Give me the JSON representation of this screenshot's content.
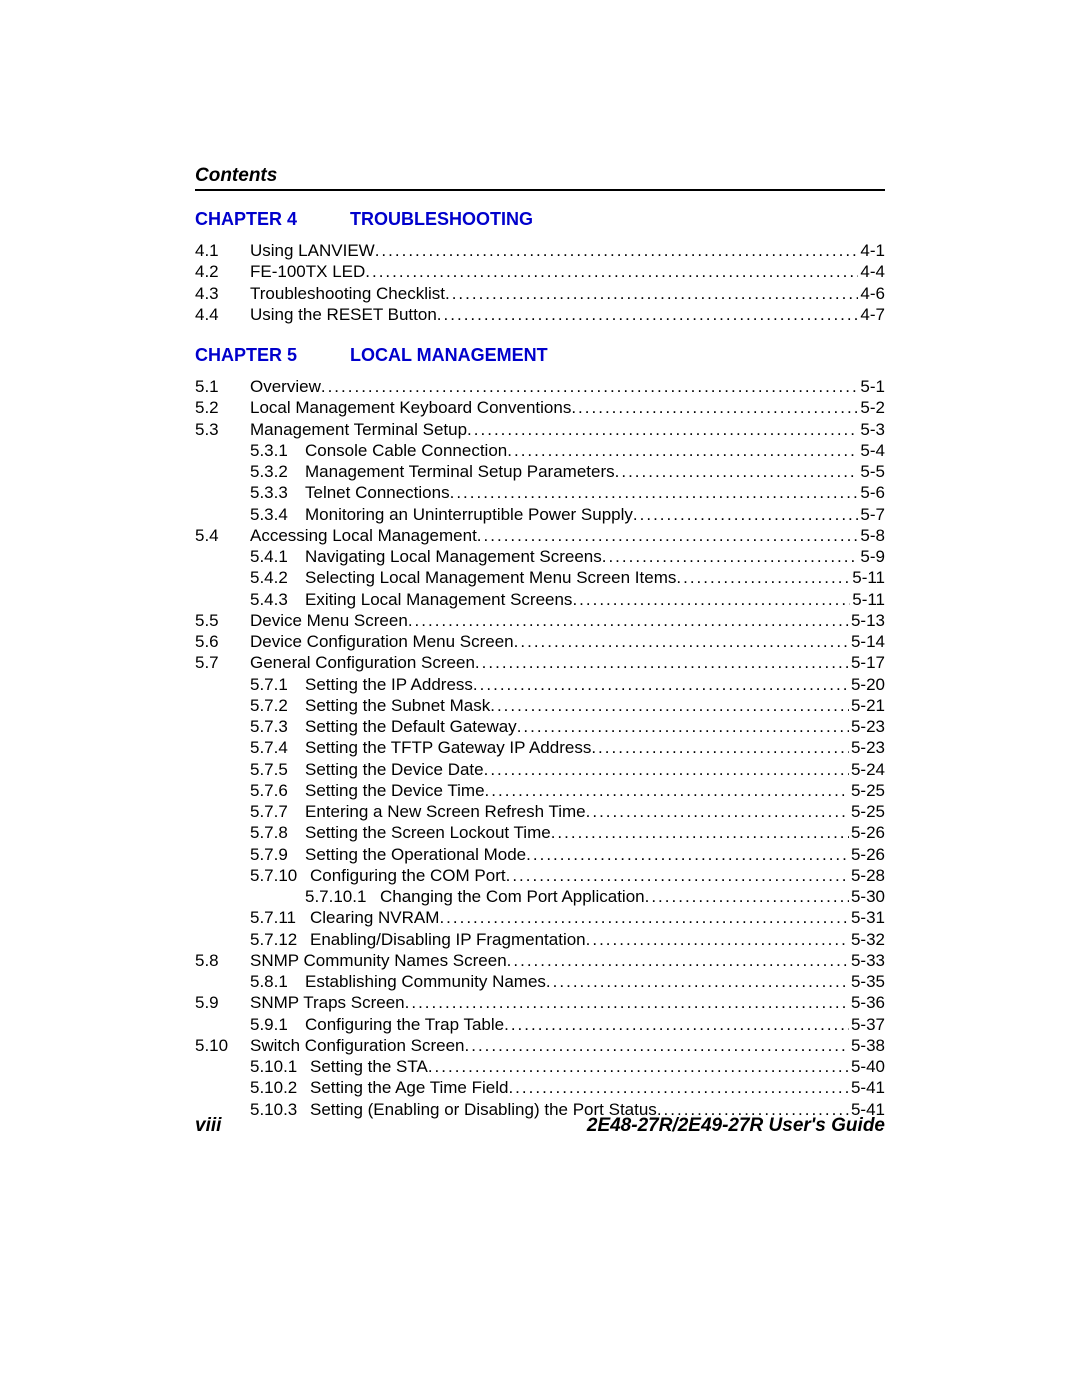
{
  "header": {
    "title": "Contents"
  },
  "chapter4": {
    "label": "CHAPTER 4",
    "title": "TROUBLESHOOTING",
    "entries": [
      {
        "num": "4.1",
        "text": "Using LANVIEW",
        "page": "4-1",
        "level": 1
      },
      {
        "num": "4.2",
        "text": "FE-100TX LED",
        "page": "4-4",
        "level": 1
      },
      {
        "num": "4.3",
        "text": "Troubleshooting Checklist",
        "page": "4-6",
        "level": 1
      },
      {
        "num": "4.4",
        "text": "Using the RESET Button",
        "page": "4-7",
        "level": 1
      }
    ]
  },
  "chapter5": {
    "label": "CHAPTER 5",
    "title": "LOCAL MANAGEMENT",
    "entries": [
      {
        "num": "5.1",
        "text": "Overview",
        "page": "5-1",
        "level": 1
      },
      {
        "num": "5.2",
        "text": "Local Management Keyboard Conventions",
        "page": "5-2",
        "level": 1
      },
      {
        "num": "5.3",
        "text": "Management Terminal Setup",
        "page": "5-3",
        "level": 1
      },
      {
        "num": "5.3.1",
        "text": "Console Cable Connection",
        "page": "5-4",
        "level": 2
      },
      {
        "num": "5.3.2",
        "text": "Management Terminal Setup Parameters",
        "page": "5-5",
        "level": 2
      },
      {
        "num": "5.3.3",
        "text": "Telnet Connections",
        "page": "5-6",
        "level": 2
      },
      {
        "num": "5.3.4",
        "text": "Monitoring an Uninterruptible Power Supply",
        "page": "5-7",
        "level": 2
      },
      {
        "num": "5.4",
        "text": "Accessing Local Management",
        "page": "5-8",
        "level": 1
      },
      {
        "num": "5.4.1",
        "text": "Navigating Local Management Screens",
        "page": "5-9",
        "level": 2
      },
      {
        "num": "5.4.2",
        "text": "Selecting Local Management Menu Screen Items",
        "page": "5-11",
        "level": 2
      },
      {
        "num": "5.4.3",
        "text": "Exiting Local Management Screens",
        "page": "5-11",
        "level": 2
      },
      {
        "num": "5.5",
        "text": "Device Menu Screen",
        "page": "5-13",
        "level": 1
      },
      {
        "num": "5.6",
        "text": "Device Configuration Menu Screen",
        "page": "5-14",
        "level": 1
      },
      {
        "num": "5.7",
        "text": "General Configuration Screen",
        "page": "5-17",
        "level": 1
      },
      {
        "num": "5.7.1",
        "text": "Setting the IP Address",
        "page": "5-20",
        "level": 2
      },
      {
        "num": "5.7.2",
        "text": "Setting the Subnet Mask",
        "page": "5-21",
        "level": 2
      },
      {
        "num": "5.7.3",
        "text": "Setting the Default Gateway",
        "page": "5-23",
        "level": 2
      },
      {
        "num": "5.7.4",
        "text": "Setting the TFTP Gateway IP Address",
        "page": "5-23",
        "level": 2
      },
      {
        "num": "5.7.5",
        "text": "Setting the Device Date",
        "page": "5-24",
        "level": 2
      },
      {
        "num": "5.7.6",
        "text": "Setting the Device Time",
        "page": "5-25",
        "level": 2
      },
      {
        "num": "5.7.7",
        "text": "Entering a New Screen Refresh Time",
        "page": "5-25",
        "level": 2
      },
      {
        "num": "5.7.8",
        "text": "Setting the Screen Lockout Time",
        "page": "5-26",
        "level": 2
      },
      {
        "num": "5.7.9",
        "text": "Setting the Operational Mode",
        "page": "5-26",
        "level": 2
      },
      {
        "num": "5.7.10",
        "text": "Configuring the COM Port",
        "page": "5-28",
        "level": 2,
        "wide": true
      },
      {
        "num": "5.7.10.1",
        "text": "Changing the Com Port Application",
        "page": "5-30",
        "level": 3
      },
      {
        "num": "5.7.11",
        "text": "Clearing NVRAM",
        "page": "5-31",
        "level": 2,
        "wide": true
      },
      {
        "num": "5.7.12",
        "text": "Enabling/Disabling IP Fragmentation",
        "page": "5-32",
        "level": 2,
        "wide": true
      },
      {
        "num": "5.8",
        "text": "SNMP Community Names Screen",
        "page": "5-33",
        "level": 1
      },
      {
        "num": "5.8.1",
        "text": "Establishing Community Names",
        "page": "5-35",
        "level": 2
      },
      {
        "num": "5.9",
        "text": "SNMP Traps Screen",
        "page": "5-36",
        "level": 1
      },
      {
        "num": "5.9.1",
        "text": "Configuring the Trap Table",
        "page": "5-37",
        "level": 2
      },
      {
        "num": "5.10",
        "text": "Switch Configuration Screen",
        "page": "5-38",
        "level": 1
      },
      {
        "num": "5.10.1",
        "text": "Setting the STA",
        "page": "5-40",
        "level": 2,
        "wide": true
      },
      {
        "num": "5.10.2",
        "text": "Setting the Age Time Field",
        "page": "5-41",
        "level": 2,
        "wide": true
      },
      {
        "num": "5.10.3",
        "text": "Setting (Enabling or Disabling) the Port Status",
        "page": "5-41",
        "level": 2,
        "wide": true
      }
    ]
  },
  "footer": {
    "pagenum": "viii",
    "guide": "2E48-27R/2E49-27R User's Guide"
  },
  "style": {
    "heading_color": "#0000cc",
    "text_color": "#000000",
    "font_body": 17,
    "font_heading": 18,
    "font_header": 19
  }
}
